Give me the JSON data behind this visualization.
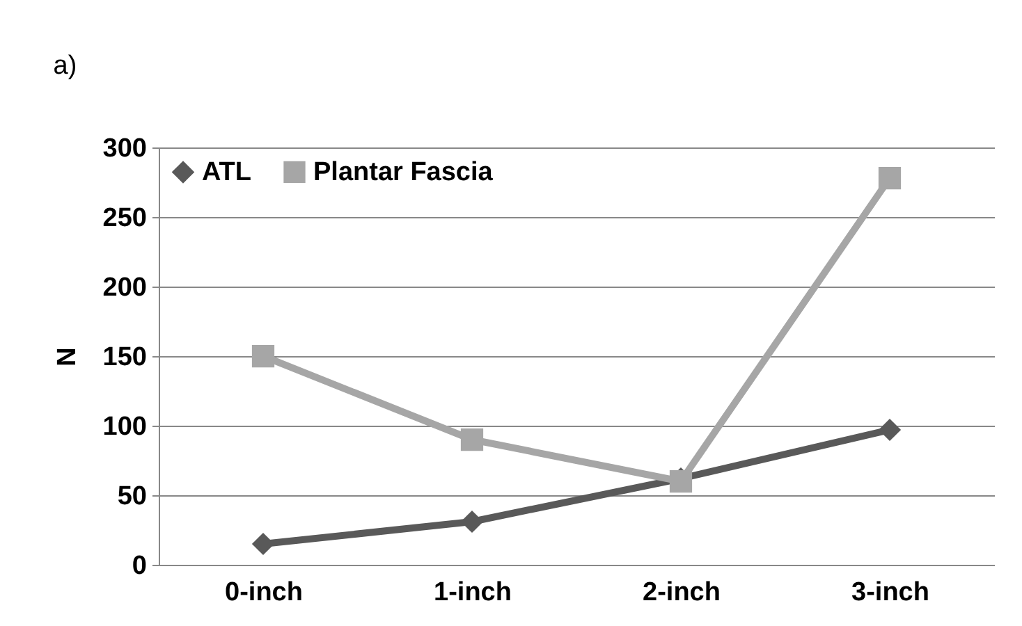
{
  "chart_data": {
    "type": "line",
    "title": "a)",
    "ylabel": "N",
    "categories": [
      "0-inch",
      "1-inch",
      "2-inch",
      "3-inch"
    ],
    "series": [
      {
        "name": "ATL",
        "color": "#595959",
        "marker": "diamond",
        "values": [
          15,
          31,
          62,
          97
        ]
      },
      {
        "name": "Plantar Fascia",
        "color": "#a6a6a6",
        "marker": "square",
        "values": [
          150,
          90,
          60,
          278
        ]
      }
    ],
    "ylim": [
      0,
      300
    ],
    "yticks": [
      0,
      50,
      100,
      150,
      200,
      250,
      300
    ],
    "grid": "y",
    "legend": "top left"
  }
}
